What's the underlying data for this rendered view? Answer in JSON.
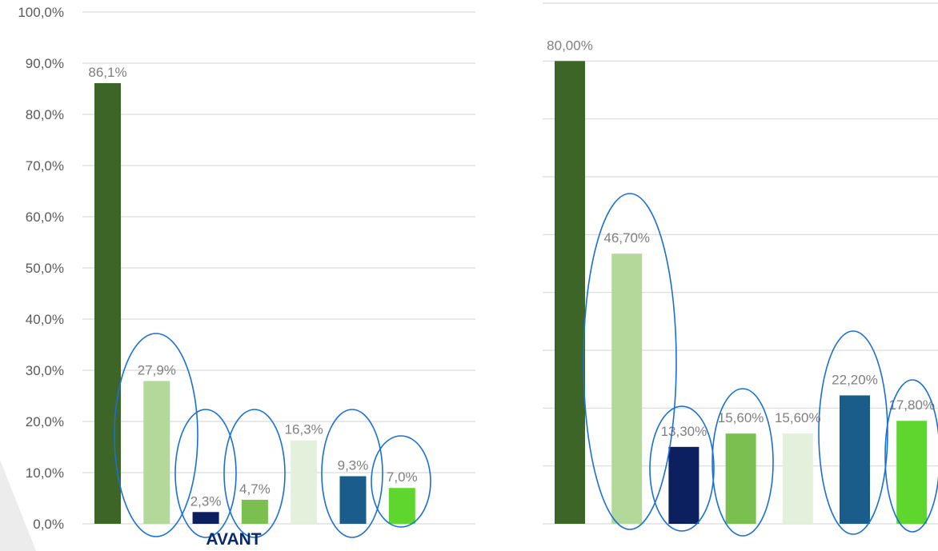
{
  "chart_data": [
    {
      "type": "bar",
      "caption": "AVANT",
      "ylim": [
        0,
        100
      ],
      "yticks": [
        "0,0%",
        "10,0%",
        "20,0%",
        "30,0%",
        "40,0%",
        "50,0%",
        "60,0%",
        "70,0%",
        "80,0%",
        "90,0%",
        "100,0%"
      ],
      "values": [
        86.1,
        27.9,
        2.3,
        4.7,
        16.3,
        9.3,
        7.0
      ],
      "labels": [
        "86,1%",
        "27,9%",
        "2,3%",
        "4,7%",
        "16,3%",
        "9,3%",
        "7,0%"
      ],
      "colors": [
        "#3d6527",
        "#b3d99a",
        "#0c1f5e",
        "#7bbf50",
        "#e3f0dc",
        "#1a5c8a",
        "#5fd62e"
      ],
      "circled": [
        false,
        true,
        true,
        true,
        false,
        true,
        true
      ],
      "grid": true
    },
    {
      "type": "bar",
      "ylim": [
        0,
        90
      ],
      "values": [
        80.0,
        46.7,
        13.3,
        15.6,
        15.6,
        22.2,
        17.8
      ],
      "labels": [
        "80,00%",
        "46,70%",
        "13,30%",
        "15,60%",
        "15,60%",
        "22,20%",
        "17,80%"
      ],
      "colors": [
        "#3d6527",
        "#b3d99a",
        "#0c1f5e",
        "#7bbf50",
        "#e3f0dc",
        "#1a5c8a",
        "#5fd62e"
      ],
      "circled": [
        false,
        true,
        true,
        true,
        false,
        true,
        true
      ],
      "grid": true
    }
  ],
  "style": {
    "grid_color": "#d9d9d9",
    "circle_color": "#1a6fd6",
    "shade_color": "#ececec"
  }
}
